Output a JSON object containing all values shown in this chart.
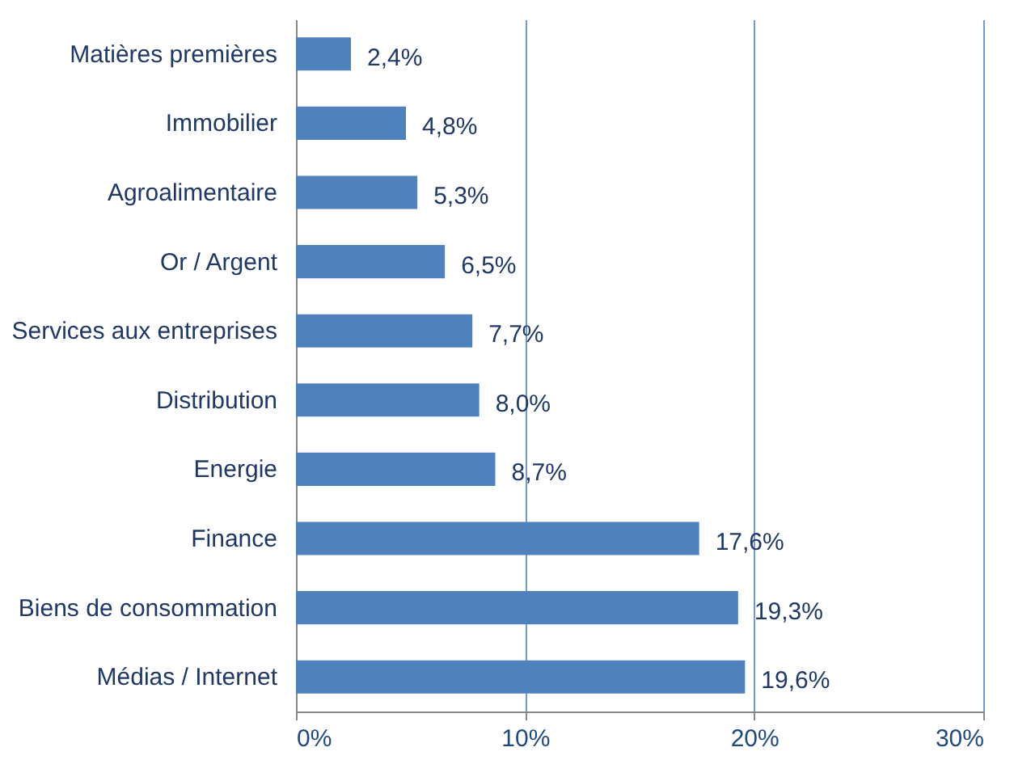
{
  "chart_data": {
    "type": "bar",
    "orientation": "horizontal",
    "categories": [
      "Matières premières",
      "Immobilier",
      "Agroalimentaire",
      "Or / Argent",
      "Services aux entreprises",
      "Distribution",
      "Energie",
      "Finance",
      "Biens de consommation",
      "Médias / Internet"
    ],
    "values": [
      2.4,
      4.8,
      5.3,
      6.5,
      7.7,
      8.0,
      8.7,
      17.6,
      19.3,
      19.6
    ],
    "value_labels": [
      "2,4%",
      "4,8%",
      "5,3%",
      "6,5%",
      "7,7%",
      "8,0%",
      "8,7%",
      "17,6%",
      "19,3%",
      "19,6%"
    ],
    "color": "#4f81bd",
    "xlim": [
      0,
      30
    ],
    "xticks": [
      {
        "value": 0,
        "label": "0%"
      },
      {
        "value": 10,
        "label": "10%"
      },
      {
        "value": 20,
        "label": "20%"
      },
      {
        "value": 30,
        "label": "30%"
      }
    ],
    "grid": "x"
  }
}
